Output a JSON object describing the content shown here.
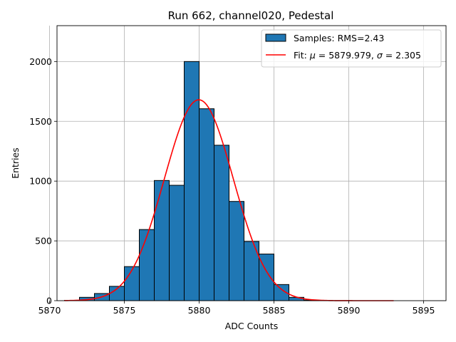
{
  "chart_data": {
    "type": "bar",
    "title": "Run 662, channel020, Pedestal",
    "xlabel": "ADC Counts",
    "ylabel": "Entries",
    "xlim": [
      5870.5,
      5896.5
    ],
    "ylim": [
      0,
      2300
    ],
    "x_ticks": [
      5870,
      5875,
      5880,
      5885,
      5890,
      5895
    ],
    "y_ticks": [
      0,
      500,
      1000,
      1500,
      2000
    ],
    "grid": true,
    "legend_position": "top-right",
    "histogram": {
      "name": "Samples: RMS=2.43",
      "color": "#1f77b4",
      "edge_color": "#000000",
      "bin_edges": [
        5871,
        5872,
        5873,
        5874,
        5875,
        5876,
        5877,
        5878,
        5879,
        5880,
        5881,
        5882,
        5883,
        5884,
        5885,
        5886,
        5887,
        5888,
        5889,
        5890,
        5891,
        5892,
        5893
      ],
      "counts": [
        3,
        28,
        60,
        120,
        285,
        595,
        1005,
        965,
        2000,
        1605,
        1300,
        830,
        495,
        390,
        135,
        28,
        5,
        0,
        0,
        0,
        0,
        0
      ]
    },
    "fit": {
      "name_prefix": "Fit: ",
      "name_mu": "μ",
      "name_mid": " = 5879.979, ",
      "name_sigma": "σ",
      "name_suffix": " = 2.305",
      "color": "#ff0000",
      "mu": 5879.979,
      "sigma": 2.305,
      "amplitude": 1680,
      "x_range": [
        5871,
        5893
      ]
    }
  }
}
